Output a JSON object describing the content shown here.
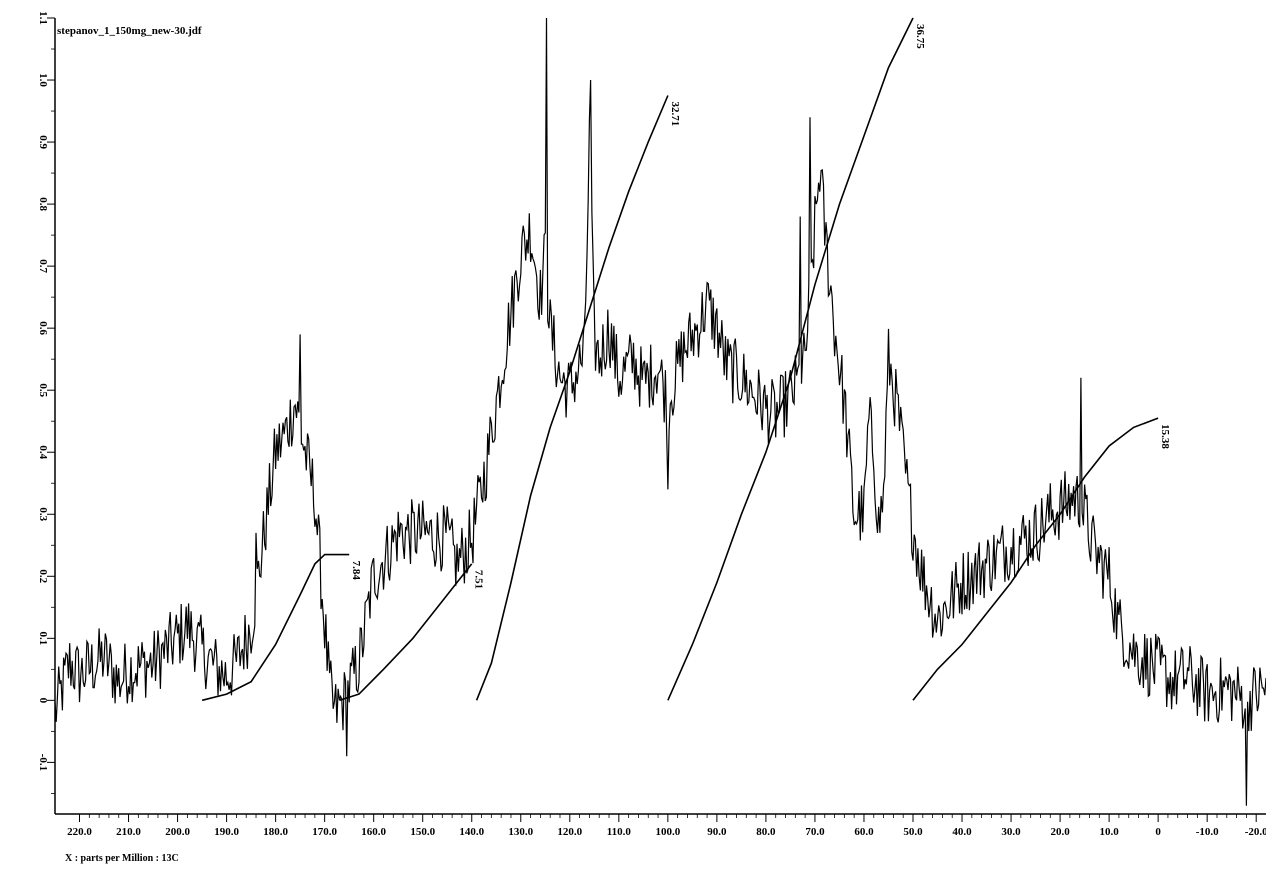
{
  "chart_data": {
    "type": "line",
    "title": "stepanov_1_150mg_new-30.jdf",
    "xlabel": "X : parts per Million : 13C",
    "ylabel": "",
    "xlim": [
      225,
      -22
    ],
    "ylim": [
      -0.18,
      1.1
    ],
    "x_reversed": true,
    "grid": false,
    "x_ticks": [
      220,
      210,
      200,
      190,
      180,
      170,
      160,
      150,
      140,
      130,
      120,
      110,
      100,
      90,
      80,
      70,
      60,
      50,
      40,
      30,
      20,
      10,
      0,
      -10,
      -20
    ],
    "x_tick_labels": [
      "220.0",
      "210.0",
      "200.0",
      "190.0",
      "180.0",
      "170.0",
      "160.0",
      "150.0",
      "140.0",
      "130.0",
      "120.0",
      "110.0",
      "100.0",
      "90.0",
      "80.0",
      "70.0",
      "60.0",
      "50.0",
      "40.0",
      "30.0",
      "20.0",
      "10.0",
      "0",
      "-10.0",
      "-20.0"
    ],
    "y_ticks": [
      -0.1,
      0,
      0.1,
      0.2,
      0.3,
      0.4,
      0.5,
      0.6,
      0.7,
      0.8,
      0.9,
      1.0,
      1.1
    ],
    "y_tick_labels": [
      "-0.1",
      "0",
      "0.1",
      "0.2",
      "0.3",
      "0.4",
      "0.5",
      "0.6",
      "0.7",
      "0.8",
      "0.9",
      "1.0",
      "1.1"
    ],
    "spectrum": {
      "x": [
        225,
        222,
        220,
        215,
        212,
        210,
        205,
        200,
        198,
        195,
        192,
        190,
        188,
        185,
        183,
        180,
        178,
        176,
        174,
        172,
        170,
        169,
        168,
        166,
        165,
        163,
        160,
        157,
        155,
        150,
        145,
        143,
        140,
        137,
        135,
        133,
        130,
        128,
        126,
        125,
        124,
        122,
        120,
        117,
        116,
        115,
        114,
        112,
        110,
        107,
        105,
        102,
        100,
        97,
        94,
        92,
        90,
        88,
        85,
        82,
        80,
        78,
        75,
        73,
        72,
        70,
        69,
        68,
        66,
        64,
        62,
        60,
        59,
        58,
        57,
        56,
        55,
        53,
        51,
        50,
        48,
        45,
        40,
        35,
        30,
        25,
        22,
        20,
        17,
        15,
        13,
        10,
        8,
        5,
        2,
        0,
        -3,
        -6,
        -10,
        -14,
        -18,
        -22
      ],
      "y": [
        -0.02,
        0.06,
        0.04,
        0.07,
        0.03,
        0.05,
        0.06,
        0.1,
        0.12,
        0.08,
        0.05,
        0.04,
        0.06,
        0.12,
        0.23,
        0.4,
        0.43,
        0.48,
        0.4,
        0.33,
        0.12,
        0.02,
        -0.02,
        0.0,
        0.02,
        0.06,
        0.2,
        0.24,
        0.27,
        0.27,
        0.26,
        0.22,
        0.26,
        0.38,
        0.48,
        0.58,
        0.72,
        0.76,
        0.65,
        0.72,
        0.6,
        0.52,
        0.5,
        0.56,
        0.9,
        0.58,
        0.55,
        0.6,
        0.52,
        0.55,
        0.51,
        0.54,
        0.48,
        0.56,
        0.6,
        0.64,
        0.6,
        0.54,
        0.52,
        0.49,
        0.47,
        0.46,
        0.49,
        0.52,
        0.55,
        0.76,
        0.86,
        0.76,
        0.6,
        0.48,
        0.3,
        0.3,
        0.45,
        0.4,
        0.28,
        0.33,
        0.55,
        0.46,
        0.33,
        0.28,
        0.2,
        0.13,
        0.19,
        0.22,
        0.25,
        0.27,
        0.3,
        0.31,
        0.33,
        0.3,
        0.24,
        0.2,
        0.12,
        0.08,
        0.06,
        0.05,
        0.03,
        0.04,
        0.01,
        0.02,
        0.0,
        0.02
      ],
      "noise": 0.055,
      "spikes": [
        [
          124.7,
          1.1
        ],
        [
          115.8,
          1.0
        ],
        [
          71.0,
          0.94
        ],
        [
          100.0,
          0.34
        ],
        [
          175.0,
          0.59
        ],
        [
          15.8,
          0.52
        ],
        [
          -18.0,
          -0.17
        ],
        [
          165.5,
          -0.09
        ],
        [
          73.0,
          0.78
        ],
        [
          184.0,
          0.27
        ]
      ]
    },
    "integrals": [
      {
        "label": "7.84",
        "x": [
          195,
          190,
          185,
          180,
          175,
          172,
          170,
          168,
          165
        ],
        "y": [
          0.0,
          0.01,
          0.03,
          0.09,
          0.17,
          0.22,
          0.235,
          0.235,
          0.235
        ]
      },
      {
        "label": "7.51",
        "x": [
          167,
          163,
          158,
          152,
          146,
          142,
          140
        ],
        "y": [
          0.0,
          0.01,
          0.05,
          0.1,
          0.16,
          0.2,
          0.22
        ]
      },
      {
        "label": "32.71",
        "x": [
          139,
          136,
          132,
          128,
          124,
          120,
          116,
          112,
          108,
          104,
          100
        ],
        "y": [
          0.0,
          0.06,
          0.19,
          0.33,
          0.44,
          0.53,
          0.63,
          0.73,
          0.82,
          0.9,
          0.975
        ]
      },
      {
        "label": "36.75",
        "x": [
          100,
          95,
          90,
          85,
          80,
          75,
          70,
          65,
          60,
          55,
          50
        ],
        "y": [
          0.0,
          0.09,
          0.19,
          0.3,
          0.4,
          0.52,
          0.67,
          0.8,
          0.91,
          1.02,
          1.1
        ]
      },
      {
        "label": "15.38",
        "x": [
          50,
          45,
          40,
          35,
          30,
          25,
          20,
          15,
          10,
          5,
          0
        ],
        "y": [
          0.0,
          0.05,
          0.09,
          0.14,
          0.19,
          0.25,
          0.3,
          0.36,
          0.41,
          0.44,
          0.455
        ]
      }
    ]
  }
}
